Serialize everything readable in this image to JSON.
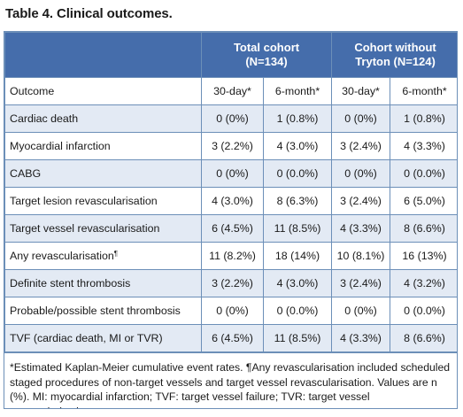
{
  "caption": "Table 4. Clinical outcomes.",
  "groups": [
    {
      "line1": "Total cohort",
      "line2": "(N=134)"
    },
    {
      "line1": "Cohort without",
      "line2": "Tryton (N=124)"
    }
  ],
  "subheader": {
    "outcome": "Outcome",
    "c1": "30-day*",
    "c2": "6-month*",
    "c3": "30-day*",
    "c4": "6-month*"
  },
  "rows": [
    {
      "label": "Cardiac death",
      "sup": "",
      "c1": "0 (0%)",
      "c2": "1 (0.8%)",
      "c3": "0 (0%)",
      "c4": "1 (0.8%)"
    },
    {
      "label": "Myocardial infarction",
      "sup": "",
      "c1": "3 (2.2%)",
      "c2": "4 (3.0%)",
      "c3": "3 (2.4%)",
      "c4": "4 (3.3%)"
    },
    {
      "label": "CABG",
      "sup": "",
      "c1": "0 (0%)",
      "c2": "0 (0.0%)",
      "c3": "0 (0%)",
      "c4": "0 (0.0%)"
    },
    {
      "label": "Target lesion revascularisation",
      "sup": "",
      "c1": "4 (3.0%)",
      "c2": "8 (6.3%)",
      "c3": "3 (2.4%)",
      "c4": "6 (5.0%)"
    },
    {
      "label": "Target vessel revascularisation",
      "sup": "",
      "c1": "6 (4.5%)",
      "c2": "11 (8.5%)",
      "c3": "4 (3.3%)",
      "c4": "8 (6.6%)"
    },
    {
      "label": "Any revascularisation",
      "sup": "¶",
      "c1": "11 (8.2%)",
      "c2": "18 (14%)",
      "c3": "10 (8.1%)",
      "c4": "16 (13%)"
    },
    {
      "label": "Definite stent thrombosis",
      "sup": "",
      "c1": "3 (2.2%)",
      "c2": "4 (3.0%)",
      "c3": "3 (2.4%)",
      "c4": "4 (3.2%)"
    },
    {
      "label": "Probable/possible stent thrombosis",
      "sup": "",
      "c1": "0 (0%)",
      "c2": "0 (0.0%)",
      "c3": "0 (0%)",
      "c4": "0 (0.0%)"
    },
    {
      "label": "TVF (cardiac death, MI or TVR)",
      "sup": "",
      "c1": "6 (4.5%)",
      "c2": "11 (8.5%)",
      "c3": "4 (3.3%)",
      "c4": "8 (6.6%)"
    }
  ],
  "footnote": "*Estimated Kaplan-Meier cumulative event rates. ¶Any revascularisation included scheduled staged procedures of non-target vessels and target vessel revascularisation. Values are n (%). MI: myocardial infarction; TVF: target vessel failure; TVR: target vessel revascularisation"
}
